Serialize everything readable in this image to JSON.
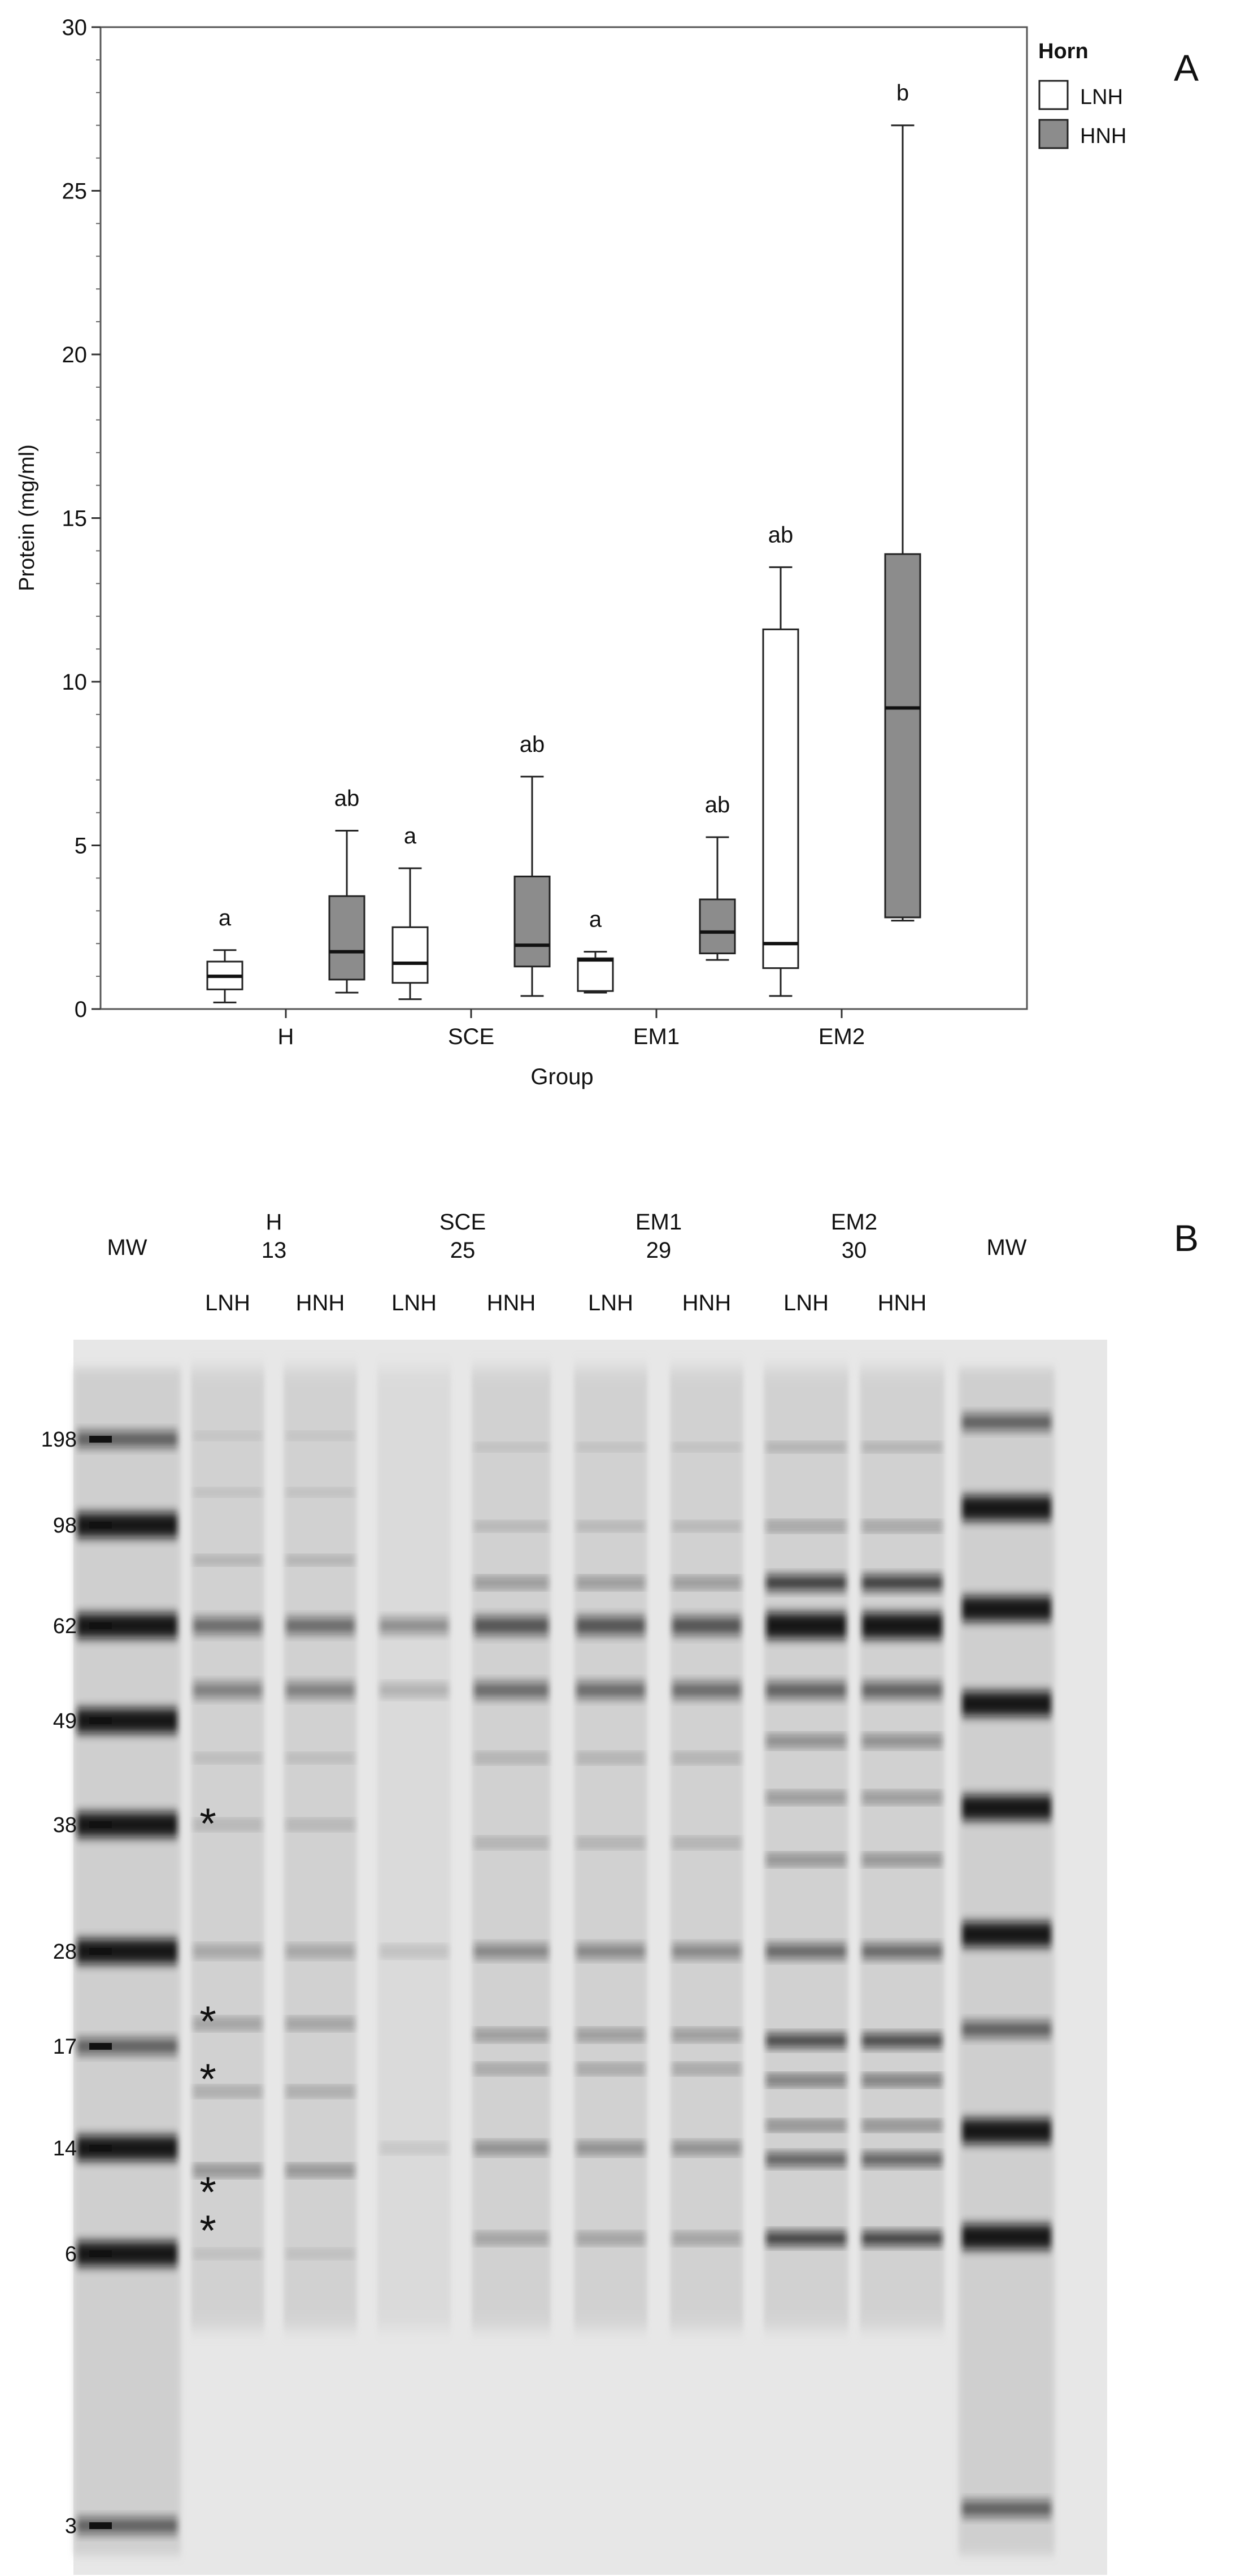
{
  "panels": {
    "a": {
      "label": "A"
    },
    "b": {
      "label": "B"
    }
  },
  "chart_data": [
    {
      "type": "box",
      "title": "",
      "xlabel": "Group",
      "ylabel": "Protein (mg/ml)",
      "ylim": [
        0,
        30
      ],
      "yticks": [
        0,
        5,
        10,
        15,
        20,
        25,
        30
      ],
      "grid": false,
      "legend": {
        "title": "Horn",
        "placement": "top-right",
        "entries": [
          "LNH",
          "HNH"
        ]
      },
      "colors": {
        "LNH": "#ffffff",
        "HNH": "#8c8c8c"
      },
      "categories": [
        "H",
        "SCE",
        "EM1",
        "EM2"
      ],
      "series": [
        {
          "name": "LNH",
          "boxes": [
            {
              "min": 0.2,
              "q1": 0.6,
              "median": 1.0,
              "q3": 1.45,
              "max": 1.8,
              "letter": "a"
            },
            {
              "min": 0.3,
              "q1": 0.8,
              "median": 1.4,
              "q3": 2.5,
              "max": 4.3,
              "letter": "a"
            },
            {
              "min": 0.5,
              "q1": 0.55,
              "median": 1.5,
              "q3": 1.55,
              "max": 1.75,
              "letter": "a"
            },
            {
              "min": 0.4,
              "q1": 1.25,
              "median": 2.0,
              "q3": 11.6,
              "max": 13.5,
              "letter": "ab"
            }
          ]
        },
        {
          "name": "HNH",
          "boxes": [
            {
              "min": 0.5,
              "q1": 0.9,
              "median": 1.75,
              "q3": 3.45,
              "max": 5.45,
              "letter": "ab"
            },
            {
              "min": 0.4,
              "q1": 1.3,
              "median": 1.95,
              "q3": 4.05,
              "max": 7.1,
              "letter": "ab"
            },
            {
              "min": 1.5,
              "q1": 1.7,
              "median": 2.35,
              "q3": 3.35,
              "max": 5.25,
              "letter": "ab"
            },
            {
              "min": 2.7,
              "q1": 2.8,
              "median": 9.2,
              "q3": 13.9,
              "max": 27.0,
              "letter": "b"
            }
          ]
        }
      ]
    },
    {
      "type": "gel",
      "marker_label": "MW",
      "marker_sizes": [
        198,
        98,
        62,
        49,
        38,
        28,
        17,
        14,
        6,
        3
      ],
      "groups": [
        {
          "name": "H",
          "n": "13"
        },
        {
          "name": "SCE",
          "n": "25"
        },
        {
          "name": "EM1",
          "n": "29"
        },
        {
          "name": "EM2",
          "n": "30"
        }
      ],
      "lanes": [
        "MW",
        "LNH",
        "HNH",
        "LNH",
        "HNH",
        "LNH",
        "HNH",
        "LNH",
        "HNH",
        "MW"
      ],
      "annotation_mark": "*",
      "annotated_markers": [
        38,
        17
      ]
    }
  ]
}
